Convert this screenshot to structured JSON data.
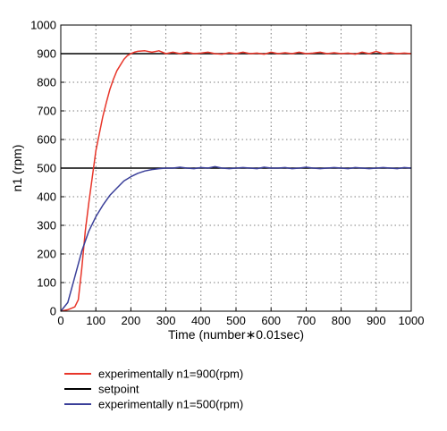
{
  "chart_data": {
    "type": "line",
    "xlabel": "Time (number∗0.01sec)",
    "ylabel": "n1 (rpm)",
    "xlim": [
      0,
      1000
    ],
    "ylim": [
      0,
      1000
    ],
    "x_ticks": [
      0,
      100,
      200,
      300,
      400,
      500,
      600,
      700,
      800,
      900,
      1000
    ],
    "y_ticks": [
      0,
      100,
      200,
      300,
      400,
      500,
      600,
      700,
      800,
      900,
      1000
    ],
    "grid": "dotted",
    "legend_position": "below",
    "series": [
      {
        "name": "experimentally n1=900(rpm)",
        "color": "#e8362a",
        "points": [
          [
            0,
            0
          ],
          [
            20,
            5
          ],
          [
            40,
            15
          ],
          [
            50,
            40
          ],
          [
            60,
            150
          ],
          [
            70,
            280
          ],
          [
            80,
            380
          ],
          [
            90,
            470
          ],
          [
            100,
            560
          ],
          [
            110,
            620
          ],
          [
            120,
            680
          ],
          [
            130,
            730
          ],
          [
            140,
            775
          ],
          [
            150,
            810
          ],
          [
            160,
            840
          ],
          [
            170,
            860
          ],
          [
            180,
            880
          ],
          [
            190,
            893
          ],
          [
            200,
            900
          ],
          [
            210,
            905
          ],
          [
            220,
            908
          ],
          [
            240,
            910
          ],
          [
            260,
            905
          ],
          [
            280,
            910
          ],
          [
            300,
            900
          ],
          [
            320,
            905
          ],
          [
            340,
            900
          ],
          [
            360,
            905
          ],
          [
            380,
            900
          ],
          [
            400,
            902
          ],
          [
            420,
            905
          ],
          [
            440,
            900
          ],
          [
            460,
            898
          ],
          [
            480,
            903
          ],
          [
            500,
            900
          ],
          [
            520,
            905
          ],
          [
            540,
            900
          ],
          [
            560,
            902
          ],
          [
            580,
            898
          ],
          [
            600,
            905
          ],
          [
            620,
            900
          ],
          [
            640,
            903
          ],
          [
            660,
            900
          ],
          [
            680,
            905
          ],
          [
            700,
            900
          ],
          [
            720,
            902
          ],
          [
            740,
            905
          ],
          [
            760,
            900
          ],
          [
            780,
            903
          ],
          [
            800,
            900
          ],
          [
            820,
            902
          ],
          [
            840,
            898
          ],
          [
            860,
            905
          ],
          [
            880,
            900
          ],
          [
            900,
            908
          ],
          [
            920,
            900
          ],
          [
            940,
            903
          ],
          [
            960,
            900
          ],
          [
            980,
            902
          ],
          [
            1000,
            900
          ]
        ]
      },
      {
        "name": "setpoint",
        "color": "#000000",
        "segments": [
          [
            [
              0,
              900
            ],
            [
              1000,
              900
            ]
          ],
          [
            [
              0,
              500
            ],
            [
              1000,
              500
            ]
          ]
        ]
      },
      {
        "name": "experimentally n1=500(rpm)",
        "color": "#3a3f99",
        "points": [
          [
            0,
            0
          ],
          [
            20,
            30
          ],
          [
            40,
            120
          ],
          [
            60,
            210
          ],
          [
            80,
            280
          ],
          [
            100,
            330
          ],
          [
            120,
            370
          ],
          [
            140,
            405
          ],
          [
            160,
            430
          ],
          [
            180,
            455
          ],
          [
            200,
            470
          ],
          [
            220,
            482
          ],
          [
            240,
            490
          ],
          [
            260,
            495
          ],
          [
            280,
            498
          ],
          [
            300,
            500
          ],
          [
            320,
            500
          ],
          [
            340,
            503
          ],
          [
            360,
            500
          ],
          [
            380,
            498
          ],
          [
            400,
            502
          ],
          [
            420,
            500
          ],
          [
            440,
            505
          ],
          [
            460,
            500
          ],
          [
            480,
            498
          ],
          [
            500,
            500
          ],
          [
            520,
            502
          ],
          [
            540,
            500
          ],
          [
            560,
            498
          ],
          [
            580,
            503
          ],
          [
            600,
            500
          ],
          [
            620,
            500
          ],
          [
            640,
            502
          ],
          [
            660,
            498
          ],
          [
            680,
            500
          ],
          [
            700,
            503
          ],
          [
            720,
            500
          ],
          [
            740,
            498
          ],
          [
            760,
            500
          ],
          [
            780,
            502
          ],
          [
            800,
            500
          ],
          [
            820,
            498
          ],
          [
            840,
            502
          ],
          [
            860,
            500
          ],
          [
            880,
            498
          ],
          [
            900,
            500
          ],
          [
            920,
            502
          ],
          [
            940,
            500
          ],
          [
            960,
            498
          ],
          [
            980,
            502
          ],
          [
            1000,
            500
          ]
        ]
      }
    ]
  }
}
